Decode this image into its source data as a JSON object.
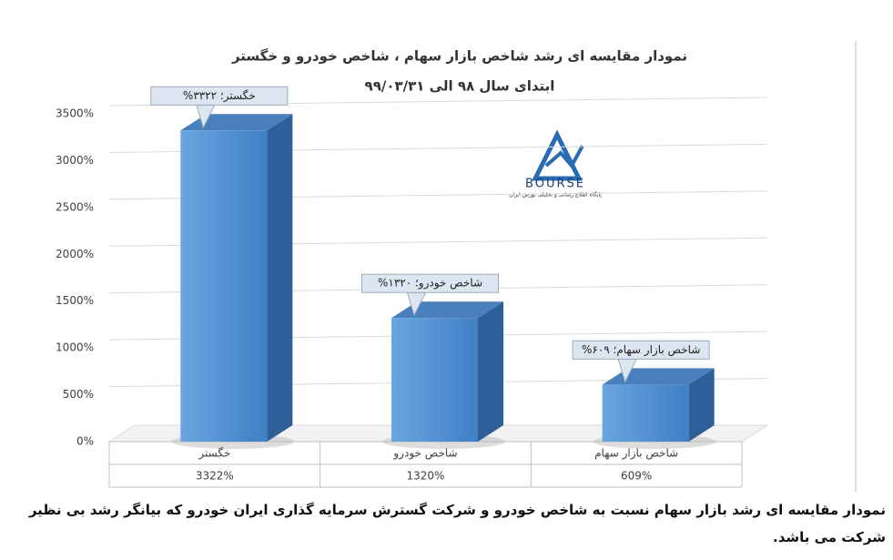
{
  "chart_data": {
    "type": "bar",
    "title": "نمودار مقایسه ای رشد شاخص بازار سهام ، شاخص خودرو و خگستر",
    "subtitle": "ابتدای سال ۹۸ الی ۹۹/۰۳/۳۱",
    "categories": [
      "خگستر",
      "شاخص خودرو",
      "شاخص بازار سهام"
    ],
    "values": [
      3322,
      1320,
      609
    ],
    "value_labels": [
      "%خگستر؛ ۳۳۲۲",
      "%شاخص خودرو؛ ۱۳۲۰",
      "%شاخص بازار سهام؛ ۶۰۹"
    ],
    "table_labels": [
      "3322%",
      "1320%",
      "609%"
    ],
    "color": "#5b9bd5",
    "ylim": [
      0,
      3500
    ],
    "yticks": [
      {
        "value": 0,
        "label": "0%"
      },
      {
        "value": 500,
        "label": "500%"
      },
      {
        "value": 1000,
        "label": "1000%"
      },
      {
        "value": 1500,
        "label": "1500%"
      },
      {
        "value": 2000,
        "label": "2000%"
      },
      {
        "value": 2500,
        "label": "2500%"
      },
      {
        "value": 3000,
        "label": "3000%"
      },
      {
        "value": 3500,
        "label": "3500%"
      }
    ],
    "grid": true
  },
  "logo": {
    "name": "BOURSE",
    "tagline": "پایگاه اطلاع رسانی و تحلیلی بورس ایران"
  },
  "caption": "نمودار مقایسه ای رشد بازار سهام نسبت به شاخص خودرو و شرکت گسترش سرمایه گذاری ایران خودرو  که بیانگر رشد بی نظیر شرکت می باشد."
}
